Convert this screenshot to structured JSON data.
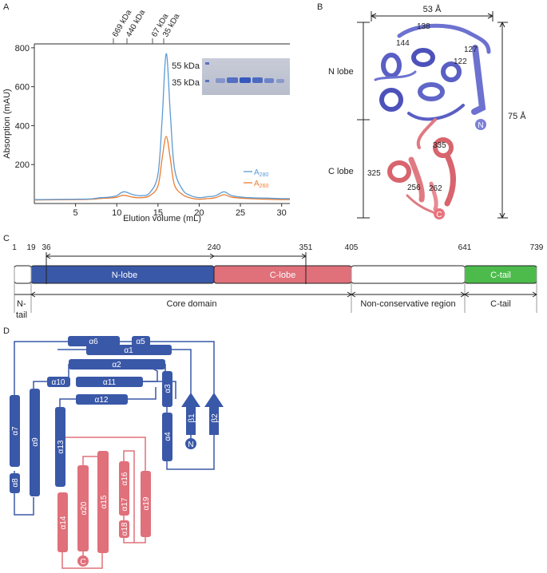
{
  "panelA": {
    "label": "A",
    "markers": [
      "669 kDa",
      "440 kDa",
      "67 kDa",
      "35 kDa"
    ],
    "gel_labels": [
      "55 kDa",
      "35 kDa"
    ],
    "chart_data": {
      "type": "line",
      "xlabel": "Elution volume (mL)",
      "ylabel": "Absorption (mAU)",
      "xlim": [
        0,
        31
      ],
      "ylim": [
        0,
        820
      ],
      "x_ticks": [
        "5",
        "10",
        "15",
        "20",
        "25",
        "30"
      ],
      "y_ticks": [
        "200",
        "400",
        "600",
        "800"
      ],
      "series": [
        {
          "name": "A280",
          "color": "#5b9bd5",
          "x": [
            0,
            5,
            7,
            8,
            9,
            10,
            10.5,
            11,
            12,
            13,
            14,
            15,
            15.5,
            16,
            16.5,
            17,
            18,
            19,
            20,
            21,
            22,
            23,
            24,
            26,
            28,
            30,
            31
          ],
          "y": [
            20,
            22,
            24,
            30,
            32,
            40,
            55,
            60,
            45,
            40,
            55,
            150,
            430,
            770,
            460,
            180,
            70,
            40,
            30,
            35,
            40,
            60,
            40,
            30,
            28,
            25,
            25
          ]
        },
        {
          "name": "A260",
          "color": "#ed7d31",
          "x": [
            0,
            5,
            7,
            8,
            9,
            10,
            10.5,
            11,
            12,
            13,
            14,
            15,
            15.5,
            16,
            16.5,
            17,
            18,
            19,
            20,
            21,
            22,
            23,
            24,
            26,
            28,
            30,
            31
          ],
          "y": [
            18,
            20,
            22,
            26,
            28,
            32,
            40,
            42,
            32,
            30,
            40,
            90,
            230,
            345,
            230,
            95,
            45,
            28,
            22,
            25,
            30,
            45,
            32,
            25,
            22,
            20,
            20
          ]
        }
      ],
      "legend": [
        "A",
        "280",
        "A",
        "260"
      ]
    }
  },
  "panelB": {
    "label": "B",
    "width_label": "53 Å",
    "height_label": "75 Å",
    "n_lobe": "N lobe",
    "c_lobe": "C lobe",
    "residues": [
      "138",
      "144",
      "127",
      "122",
      "335",
      "325",
      "256",
      "262"
    ],
    "n_term": "N",
    "c_term": "C"
  },
  "panelC": {
    "label": "C",
    "positions": [
      "1",
      "19",
      "36",
      "240",
      "351",
      "405",
      "641",
      "739"
    ],
    "domains": [
      "N-lobe",
      "C-lobe",
      "C-tail"
    ],
    "regions": [
      "N-",
      "tail",
      "Core domain",
      "Non-conservative region",
      "C-tail"
    ],
    "colors": {
      "n_lobe": "#3a58a8",
      "c_lobe": "#e0707a",
      "c_tail": "#4cbb4c"
    }
  },
  "panelD": {
    "label": "D",
    "blue_helices": [
      "α6",
      "α5",
      "α1",
      "α2",
      "α10",
      "α11",
      "α12",
      "α3",
      "α4",
      "α7",
      "α8",
      "α9",
      "α13"
    ],
    "blue_strands": [
      "β1",
      "β2"
    ],
    "red_helices": [
      "α14",
      "α20",
      "α15",
      "α16",
      "α17",
      "α18",
      "α19"
    ],
    "n_term": "N",
    "c_term": "C"
  }
}
